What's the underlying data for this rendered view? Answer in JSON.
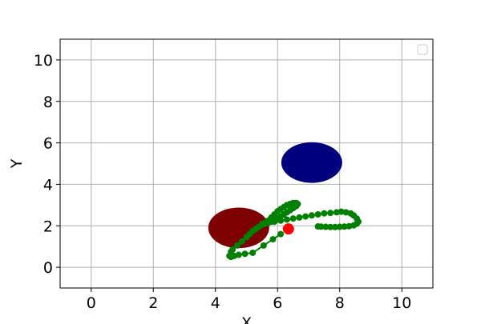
{
  "chart_data": {
    "type": "scatter",
    "title": "",
    "xlabel": "X",
    "ylabel": "Y",
    "xlim": [
      -1,
      11
    ],
    "ylim": [
      -1,
      11
    ],
    "xticks": [
      0,
      2,
      4,
      6,
      8,
      10
    ],
    "yticks": [
      0,
      2,
      4,
      6,
      8,
      10
    ],
    "grid": true,
    "legend": {
      "placement": "top-right",
      "entries": []
    },
    "obstacles": [
      {
        "shape": "ellipse",
        "cx": 7.1,
        "cy": 5.05,
        "rx": 0.98,
        "ry": 0.98,
        "color": "#00007f"
      },
      {
        "shape": "ellipse",
        "cx": 4.75,
        "cy": 1.9,
        "rx": 0.98,
        "ry": 0.98,
        "color": "#7f0000"
      }
    ],
    "trajectory": {
      "color": "#008000",
      "x": [
        4.5,
        4.55,
        4.7,
        4.85,
        5.0,
        5.1,
        5.2,
        5.3,
        5.4,
        5.5,
        5.6,
        5.7,
        5.8,
        5.9,
        6.0,
        6.1,
        6.2,
        6.3,
        6.4,
        6.5,
        6.6,
        6.65,
        6.6,
        6.5,
        6.4,
        6.3,
        6.2,
        6.1,
        6.0,
        5.9,
        5.8,
        5.7,
        5.6,
        5.5,
        5.7,
        5.9,
        6.1,
        6.3,
        6.5,
        6.7,
        6.9,
        7.1,
        7.3,
        7.5,
        7.7,
        7.9,
        8.05,
        8.2,
        8.35,
        8.45,
        8.55,
        8.6,
        8.55,
        8.45,
        8.3,
        8.15,
        8.0,
        7.85,
        7.7,
        7.55,
        7.4,
        7.3
      ],
      "y": [
        0.75,
        0.85,
        1.05,
        1.25,
        1.45,
        1.6,
        1.75,
        1.85,
        1.95,
        2.05,
        2.15,
        2.25,
        2.4,
        2.55,
        2.7,
        2.8,
        2.9,
        3.0,
        3.05,
        3.1,
        3.1,
        3.05,
        2.95,
        2.85,
        2.75,
        2.65,
        2.55,
        2.45,
        2.35,
        2.25,
        2.2,
        2.15,
        2.1,
        2.1,
        2.15,
        2.2,
        2.25,
        2.3,
        2.35,
        2.4,
        2.45,
        2.5,
        2.55,
        2.6,
        2.62,
        2.65,
        2.68,
        2.65,
        2.6,
        2.5,
        2.35,
        2.2,
        2.1,
        2.02,
        1.98,
        1.96,
        1.95,
        1.94,
        1.94,
        1.95,
        1.96,
        1.97
      ]
    },
    "start_segment": {
      "color": "#008000",
      "x": [
        4.45,
        4.5,
        4.6,
        4.75,
        4.95,
        5.2,
        5.55,
        5.85,
        6.1
      ],
      "y": [
        0.55,
        0.5,
        0.55,
        0.6,
        0.65,
        0.7,
        1.05,
        1.35,
        1.6
      ]
    },
    "target_point": {
      "x": 6.35,
      "y": 1.85,
      "color": "#ff0000"
    }
  }
}
